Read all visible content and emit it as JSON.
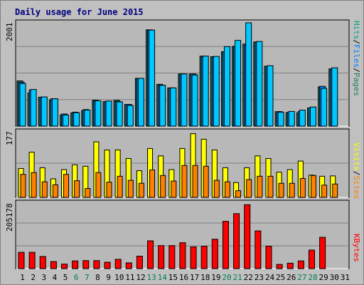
{
  "title": "Daily usage for June 2015",
  "colors": {
    "background": "#c0c0c0",
    "panel": "#b8b8b8",
    "pages": "#1f7f5f",
    "files": "#0080ff",
    "hits": "#00c8ff",
    "visits": "#ffff00",
    "sites": "#ff8000",
    "kbytes": "#ff0000",
    "weekend_day": "#007f50",
    "weekday": "#000000"
  },
  "chart_data": [
    {
      "type": "bar",
      "panel": "hits",
      "ymax_label": "2001",
      "ymax": 2001,
      "legend": [
        "Pages",
        "Files",
        "Hits"
      ],
      "categories": [
        "1",
        "2",
        "3",
        "4",
        "5",
        "6",
        "7",
        "8",
        "9",
        "10",
        "11",
        "12",
        "13",
        "14",
        "15",
        "16",
        "17",
        "18",
        "19",
        "20",
        "21",
        "22",
        "23",
        "24",
        "25",
        "26",
        "27",
        "28",
        "29",
        "30",
        "31"
      ],
      "series": [
        {
          "name": "Pages",
          "values": [
            875,
            640,
            560,
            500,
            215,
            255,
            300,
            500,
            475,
            500,
            420,
            925,
            1865,
            810,
            740,
            1010,
            1010,
            1355,
            1345,
            1440,
            1545,
            1590,
            1630,
            1160,
            280,
            260,
            260,
            350,
            760,
            1110,
            0
          ]
        },
        {
          "name": "Files",
          "values": [
            850,
            700,
            560,
            530,
            235,
            270,
            320,
            490,
            470,
            475,
            420,
            920,
            1860,
            790,
            740,
            1010,
            1010,
            1340,
            1340,
            1440,
            1545,
            1570,
            1630,
            1160,
            280,
            270,
            285,
            355,
            770,
            1090,
            0
          ]
        },
        {
          "name": "Hits",
          "values": [
            825,
            710,
            565,
            530,
            215,
            260,
            310,
            490,
            485,
            470,
            400,
            925,
            1860,
            790,
            740,
            1010,
            990,
            1355,
            1350,
            1540,
            1660,
            2001,
            1640,
            1170,
            270,
            285,
            310,
            370,
            730,
            1130,
            0
          ]
        }
      ]
    },
    {
      "type": "bar",
      "panel": "visits",
      "ymax_label": "177",
      "ymax": 177,
      "legend": [
        "Sites",
        "Visits"
      ],
      "categories": [
        "1",
        "2",
        "3",
        "4",
        "5",
        "6",
        "7",
        "8",
        "9",
        "10",
        "11",
        "12",
        "13",
        "14",
        "15",
        "16",
        "17",
        "18",
        "19",
        "20",
        "21",
        "22",
        "23",
        "24",
        "25",
        "26",
        "27",
        "28",
        "29",
        "30",
        "31"
      ],
      "series": [
        {
          "name": "Visits",
          "values": [
            78,
            122,
            80,
            50,
            75,
            88,
            84,
            150,
            128,
            128,
            105,
            72,
            132,
            112,
            75,
            132,
            172,
            157,
            128,
            80,
            40,
            80,
            112,
            105,
            68,
            75,
            98,
            60,
            57,
            58,
            0
          ]
        },
        {
          "name": "Sites",
          "values": [
            62,
            67,
            42,
            34,
            62,
            45,
            24,
            67,
            41,
            57,
            46,
            38,
            74,
            59,
            44,
            86,
            86,
            84,
            46,
            42,
            18,
            48,
            57,
            57,
            38,
            38,
            51,
            59,
            33,
            36,
            0
          ]
        }
      ]
    },
    {
      "type": "bar",
      "panel": "kbytes",
      "ymax_label": "205178",
      "ymax": 205178,
      "legend": [
        "KBytes"
      ],
      "categories": [
        "1",
        "2",
        "3",
        "4",
        "5",
        "6",
        "7",
        "8",
        "9",
        "10",
        "11",
        "12",
        "13",
        "14",
        "15",
        "16",
        "17",
        "18",
        "19",
        "20",
        "21",
        "22",
        "23",
        "24",
        "25",
        "26",
        "27",
        "28",
        "29",
        "30",
        "31"
      ],
      "series": [
        {
          "name": "KBytes",
          "values": [
            51000,
            51000,
            38000,
            22000,
            14000,
            24000,
            25000,
            25000,
            20000,
            29000,
            18000,
            39000,
            87000,
            72000,
            72000,
            81000,
            68000,
            70000,
            92000,
            148000,
            172000,
            200000,
            118000,
            70000,
            13000,
            17000,
            24000,
            58000,
            98000,
            0,
            0
          ]
        }
      ]
    }
  ],
  "x_axis": {
    "labels": [
      "1",
      "2",
      "3",
      "4",
      "5",
      "6",
      "7",
      "8",
      "9",
      "10",
      "11",
      "12",
      "13",
      "14",
      "15",
      "16",
      "17",
      "18",
      "19",
      "20",
      "21",
      "22",
      "23",
      "24",
      "25",
      "26",
      "27",
      "28",
      "29",
      "30",
      "31"
    ],
    "weekend_days": [
      6,
      7,
      13,
      14,
      20,
      21,
      27,
      28
    ]
  }
}
